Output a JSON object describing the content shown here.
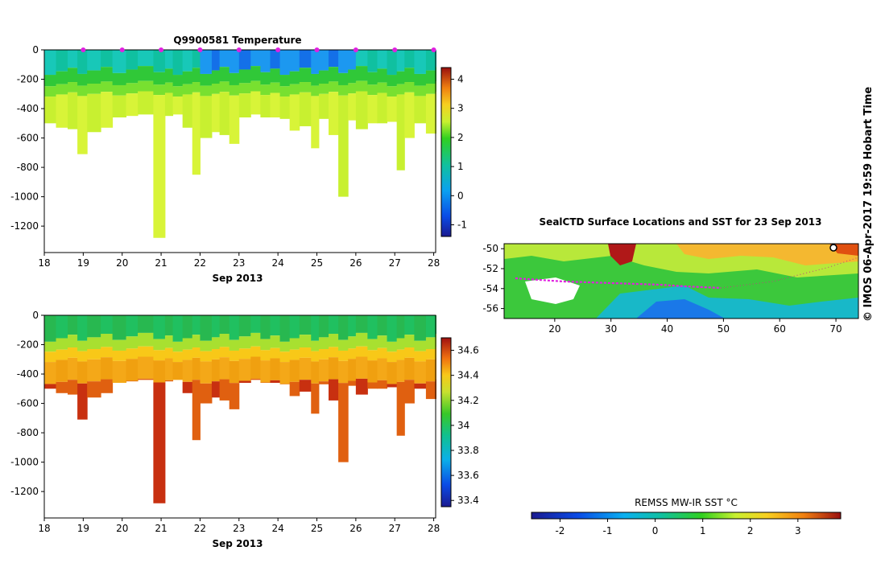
{
  "chart_data": [
    {
      "id": "temperature",
      "type": "heatmap",
      "title": "Q9900581  Temperature",
      "xlabel": "Sep 2013",
      "ylabel": "",
      "xlim": [
        18,
        28.05
      ],
      "ylim": [
        -1380,
        0
      ],
      "xticks": [
        "18",
        "19",
        "20",
        "21",
        "22",
        "23",
        "24",
        "25",
        "26",
        "27",
        "28"
      ],
      "yticks": [
        0,
        -200,
        -400,
        -600,
        -800,
        -1000,
        -1200
      ],
      "colorbar": {
        "min": -1.4,
        "max": 4.4,
        "ticks": [
          -1,
          0,
          1,
          2,
          3,
          4
        ]
      },
      "profile_days": [
        18.0,
        18.3,
        18.6,
        18.85,
        19.1,
        19.45,
        19.75,
        20.1,
        20.4,
        20.8,
        21.1,
        21.3,
        21.55,
        21.8,
        22.0,
        22.3,
        22.5,
        22.75,
        23.0,
        23.3,
        23.55,
        23.8,
        24.05,
        24.3,
        24.55,
        24.85,
        25.05,
        25.3,
        25.55,
        25.8,
        26.0,
        26.3,
        26.55,
        26.8,
        27.05,
        27.25,
        27.5,
        27.8,
        28.05
      ],
      "profile_depths": [
        -500,
        -530,
        -540,
        -710,
        -560,
        -530,
        -460,
        -450,
        -440,
        -1280,
        -450,
        -440,
        -530,
        -850,
        -600,
        -560,
        -580,
        -640,
        -460,
        -440,
        -460,
        -460,
        -470,
        -550,
        -520,
        -670,
        -470,
        -580,
        -1000,
        -480,
        -540,
        -500,
        -500,
        -490,
        -820,
        -600,
        -500,
        -570,
        -570
      ],
      "surface_marker_days": [
        19,
        20,
        21,
        22,
        23,
        24,
        25,
        26,
        27,
        28
      ]
    },
    {
      "id": "salinity",
      "type": "heatmap",
      "title": "",
      "xlabel": "Sep 2013",
      "ylabel": "",
      "xlim": [
        18,
        28.05
      ],
      "ylim": [
        -1380,
        0
      ],
      "xticks": [
        "18",
        "19",
        "20",
        "21",
        "22",
        "23",
        "24",
        "25",
        "26",
        "27",
        "28"
      ],
      "yticks": [
        0,
        -200,
        -400,
        -600,
        -800,
        -1000,
        -1200
      ],
      "colorbar": {
        "min": 33.35,
        "max": 34.7,
        "ticks": [
          "33.4",
          "33.6",
          "33.8",
          "34",
          "34.2",
          "34.4",
          "34.6"
        ]
      }
    },
    {
      "id": "map",
      "type": "heatmap",
      "title": "SealCTD Surface Locations and SST for 23 Sep 2013",
      "xlabel": "",
      "ylabel": "",
      "xlim": [
        11,
        74
      ],
      "ylim": [
        -57,
        -49.5
      ],
      "xticks": [
        "20",
        "30",
        "40",
        "50",
        "60",
        "70"
      ],
      "yticks": [
        -50,
        -52,
        -54,
        -56
      ],
      "colorbar": {
        "label": "REMSS MW-IR SST °C",
        "min": -2.6,
        "max": 3.9,
        "ticks": [
          "-2",
          "-1",
          "0",
          "1",
          "2",
          "3"
        ]
      }
    }
  ],
  "credit": "© IMOS 06-Apr-2017 19:59 Hobart Time"
}
